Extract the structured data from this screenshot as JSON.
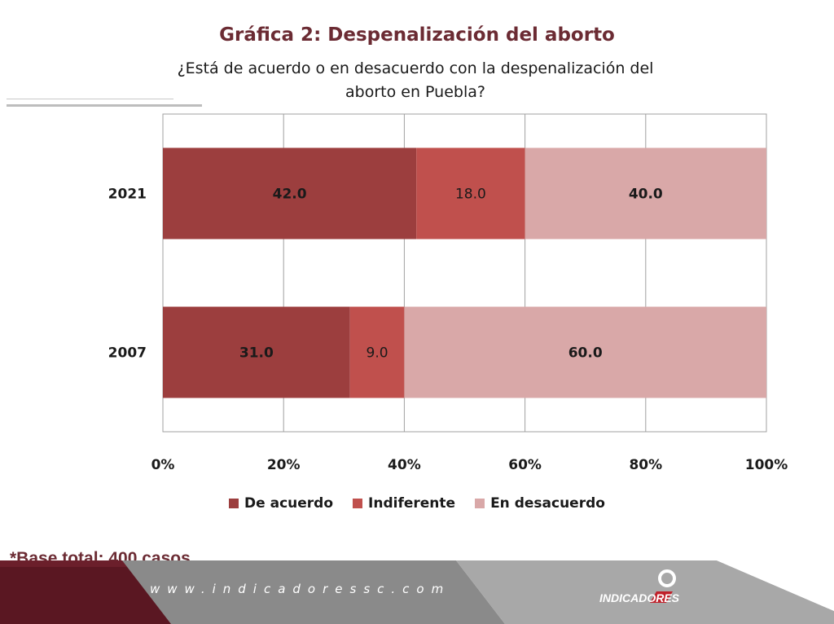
{
  "chart_data": {
    "type": "bar",
    "orientation": "horizontal",
    "stacked": true,
    "title": "Gráfica 2: Despenalización del aborto",
    "subtitle_lines": [
      "¿Está de acuerdo o en desacuerdo con la despenalización del",
      "aborto en Puebla?"
    ],
    "categories": [
      "2021",
      "2007"
    ],
    "series": [
      {
        "name": "De acuerdo",
        "values": [
          42.0,
          31.0
        ],
        "color": "#9c3e3e",
        "labels": [
          "42.0",
          "31.0"
        ],
        "bold_labels": true
      },
      {
        "name": "Indiferente",
        "values": [
          18.0,
          9.0
        ],
        "color": "#c0504d",
        "labels": [
          "18.0",
          "9.0"
        ],
        "bold_labels": false
      },
      {
        "name": "En desacuerdo",
        "values": [
          40.0,
          60.0
        ],
        "color": "#d9a8a8",
        "labels": [
          "40.0",
          "60.0"
        ],
        "bold_labels": true
      }
    ],
    "xlim": [
      0,
      100
    ],
    "xticks": [
      "0%",
      "20%",
      "40%",
      "60%",
      "80%",
      "100%"
    ],
    "grid": true,
    "legend_position": "bottom"
  },
  "notes": {
    "base": "*Base total: 400 casos"
  },
  "footer": {
    "url": "www.indicadoressc.com",
    "brand": "INDICADORES"
  }
}
